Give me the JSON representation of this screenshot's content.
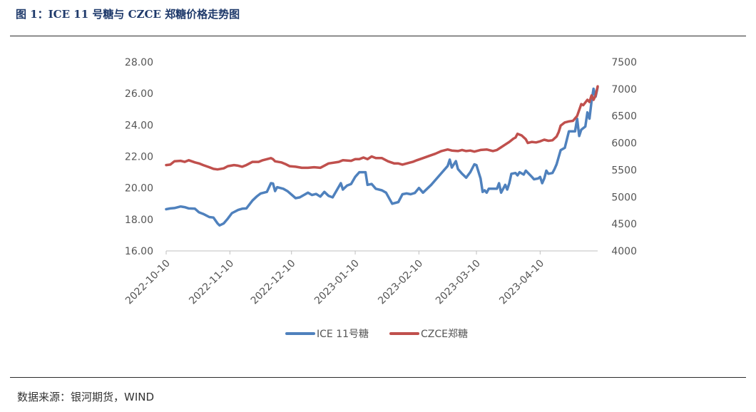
{
  "header": {
    "title": "图 1：ICE 11 号糖与 CZCE 郑糖价格走势图"
  },
  "footer": {
    "source": "数据来源：银河期货，WIND"
  },
  "colors": {
    "ice": "#4f81bd",
    "czce": "#c0504d",
    "title": "#1f3a6b"
  },
  "chart_data": {
    "type": "line",
    "title": "",
    "x_type": "date",
    "x_range": [
      "2022-10-10",
      "2023-04-28"
    ],
    "x_ticks": [
      "2022-10-10",
      "2022-11-10",
      "2022-12-10",
      "2023-01-10",
      "2023-02-10",
      "2023-03-10",
      "2023-04-10"
    ],
    "y_left": {
      "range": [
        16,
        28
      ],
      "ticks": [
        "16.00",
        "18.00",
        "20.00",
        "22.00",
        "24.00",
        "26.00",
        "28.00"
      ]
    },
    "y_right": {
      "range": [
        4000,
        7500
      ],
      "ticks": [
        "4000",
        "4500",
        "5000",
        "5500",
        "6000",
        "6500",
        "7000",
        "7500"
      ]
    },
    "grid": false,
    "legend": "bottom",
    "series": [
      {
        "name": "ICE 11号糖",
        "axis": "left",
        "points": [
          [
            "2022-10-10",
            18.65
          ],
          [
            "2022-10-12",
            18.7
          ],
          [
            "2022-10-14",
            18.72
          ],
          [
            "2022-10-17",
            18.82
          ],
          [
            "2022-10-19",
            18.78
          ],
          [
            "2022-10-21",
            18.7
          ],
          [
            "2022-10-24",
            18.68
          ],
          [
            "2022-10-26",
            18.45
          ],
          [
            "2022-10-28",
            18.35
          ],
          [
            "2022-10-31",
            18.15
          ],
          [
            "2022-11-02",
            18.12
          ],
          [
            "2022-11-04",
            17.75
          ],
          [
            "2022-11-05",
            17.62
          ],
          [
            "2022-11-07",
            17.75
          ],
          [
            "2022-11-09",
            18.05
          ],
          [
            "2022-11-11",
            18.4
          ],
          [
            "2022-11-14",
            18.6
          ],
          [
            "2022-11-16",
            18.68
          ],
          [
            "2022-11-18",
            18.7
          ],
          [
            "2022-11-21",
            19.2
          ],
          [
            "2022-11-23",
            19.45
          ],
          [
            "2022-11-25",
            19.65
          ],
          [
            "2022-11-28",
            19.75
          ],
          [
            "2022-11-30",
            20.3
          ],
          [
            "2022-12-01",
            20.28
          ],
          [
            "2022-12-02",
            19.8
          ],
          [
            "2022-12-03",
            20.05
          ],
          [
            "2022-12-06",
            19.95
          ],
          [
            "2022-12-08",
            19.8
          ],
          [
            "2022-12-12",
            19.35
          ],
          [
            "2022-12-14",
            19.4
          ],
          [
            "2022-12-16",
            19.55
          ],
          [
            "2022-12-18",
            19.7
          ],
          [
            "2022-12-20",
            19.55
          ],
          [
            "2022-12-22",
            19.62
          ],
          [
            "2022-12-24",
            19.45
          ],
          [
            "2022-12-26",
            19.75
          ],
          [
            "2022-12-28",
            19.5
          ],
          [
            "2022-12-30",
            19.4
          ],
          [
            "2023-01-03",
            20.3
          ],
          [
            "2023-01-04",
            19.9
          ],
          [
            "2023-01-06",
            20.15
          ],
          [
            "2023-01-08",
            20.25
          ],
          [
            "2023-01-10",
            20.7
          ],
          [
            "2023-01-12",
            21.0
          ],
          [
            "2023-01-15",
            21.0
          ],
          [
            "2023-01-16",
            20.2
          ],
          [
            "2023-01-18",
            20.25
          ],
          [
            "2023-01-20",
            19.95
          ],
          [
            "2023-01-23",
            19.85
          ],
          [
            "2023-01-25",
            19.7
          ],
          [
            "2023-01-28",
            19.0
          ],
          [
            "2023-01-31",
            19.1
          ],
          [
            "2023-02-02",
            19.6
          ],
          [
            "2023-02-04",
            19.65
          ],
          [
            "2023-02-06",
            19.6
          ],
          [
            "2023-02-08",
            19.68
          ],
          [
            "2023-02-10",
            20.0
          ],
          [
            "2023-02-12",
            19.7
          ],
          [
            "2023-02-16",
            20.2
          ],
          [
            "2023-02-20",
            20.8
          ],
          [
            "2023-02-24",
            21.4
          ],
          [
            "2023-02-25",
            21.8
          ],
          [
            "2023-02-26",
            21.3
          ],
          [
            "2023-02-28",
            21.7
          ],
          [
            "2023-03-01",
            21.2
          ],
          [
            "2023-03-03",
            20.9
          ],
          [
            "2023-03-05",
            20.65
          ],
          [
            "2023-03-07",
            21.0
          ],
          [
            "2023-03-09",
            21.5
          ],
          [
            "2023-03-10",
            21.45
          ],
          [
            "2023-03-12",
            20.6
          ],
          [
            "2023-03-13",
            19.75
          ],
          [
            "2023-03-14",
            19.85
          ],
          [
            "2023-03-15",
            19.7
          ],
          [
            "2023-03-16",
            19.95
          ],
          [
            "2023-03-20",
            19.95
          ],
          [
            "2023-03-21",
            20.3
          ],
          [
            "2023-03-22",
            19.7
          ],
          [
            "2023-03-24",
            20.2
          ],
          [
            "2023-03-25",
            19.9
          ],
          [
            "2023-03-26",
            20.3
          ],
          [
            "2023-03-27",
            20.9
          ],
          [
            "2023-03-29",
            20.95
          ],
          [
            "2023-03-30",
            20.8
          ],
          [
            "2023-03-31",
            21.0
          ],
          [
            "2023-04-02",
            20.85
          ],
          [
            "2023-04-03",
            21.1
          ],
          [
            "2023-04-06",
            20.7
          ],
          [
            "2023-04-07",
            20.55
          ],
          [
            "2023-04-09",
            20.6
          ],
          [
            "2023-04-10",
            20.7
          ],
          [
            "2023-04-11",
            20.3
          ],
          [
            "2023-04-12",
            20.6
          ],
          [
            "2023-04-13",
            21.1
          ],
          [
            "2023-04-14",
            20.9
          ],
          [
            "2023-04-16",
            20.95
          ],
          [
            "2023-04-17",
            21.2
          ],
          [
            "2023-04-18",
            21.5
          ],
          [
            "2023-04-20",
            22.4
          ],
          [
            "2023-04-22",
            22.55
          ],
          [
            "2023-04-24",
            23.6
          ],
          [
            "2023-04-27",
            23.6
          ],
          [
            "2023-04-28",
            24.4
          ],
          [
            "2023-04-29",
            23.3
          ],
          [
            "2023-04-30",
            23.7
          ],
          [
            "2023-05-02",
            23.9
          ],
          [
            "2023-05-03",
            24.8
          ],
          [
            "2023-05-04",
            24.4
          ],
          [
            "2023-05-05",
            25.5
          ],
          [
            "2023-05-06",
            26.3
          ],
          [
            "2023-05-07",
            25.8
          ],
          [
            "2023-05-08",
            26.4
          ]
        ]
      },
      {
        "name": "CZCE郑糖",
        "axis": "right",
        "points": [
          [
            "2022-10-10",
            5590
          ],
          [
            "2022-10-12",
            5600
          ],
          [
            "2022-10-14",
            5660
          ],
          [
            "2022-10-17",
            5670
          ],
          [
            "2022-10-19",
            5650
          ],
          [
            "2022-10-21",
            5680
          ],
          [
            "2022-10-24",
            5640
          ],
          [
            "2022-10-26",
            5620
          ],
          [
            "2022-10-28",
            5590
          ],
          [
            "2022-10-31",
            5550
          ],
          [
            "2022-11-02",
            5520
          ],
          [
            "2022-11-04",
            5510
          ],
          [
            "2022-11-07",
            5530
          ],
          [
            "2022-11-09",
            5570
          ],
          [
            "2022-11-12",
            5590
          ],
          [
            "2022-11-14",
            5580
          ],
          [
            "2022-11-16",
            5560
          ],
          [
            "2022-11-18",
            5590
          ],
          [
            "2022-11-21",
            5650
          ],
          [
            "2022-11-24",
            5650
          ],
          [
            "2022-11-26",
            5680
          ],
          [
            "2022-11-28",
            5700
          ],
          [
            "2022-11-30",
            5720
          ],
          [
            "2022-12-01",
            5700
          ],
          [
            "2022-12-02",
            5660
          ],
          [
            "2022-12-05",
            5640
          ],
          [
            "2022-12-07",
            5610
          ],
          [
            "2022-12-09",
            5570
          ],
          [
            "2022-12-12",
            5560
          ],
          [
            "2022-12-15",
            5540
          ],
          [
            "2022-12-18",
            5540
          ],
          [
            "2022-12-21",
            5550
          ],
          [
            "2022-12-24",
            5540
          ],
          [
            "2022-12-26",
            5580
          ],
          [
            "2022-12-28",
            5620
          ],
          [
            "2023-01-02",
            5650
          ],
          [
            "2023-01-04",
            5680
          ],
          [
            "2023-01-08",
            5670
          ],
          [
            "2023-01-10",
            5700
          ],
          [
            "2023-01-12",
            5700
          ],
          [
            "2023-01-14",
            5730
          ],
          [
            "2023-01-16",
            5700
          ],
          [
            "2023-01-18",
            5750
          ],
          [
            "2023-01-20",
            5720
          ],
          [
            "2023-01-23",
            5720
          ],
          [
            "2023-01-26",
            5660
          ],
          [
            "2023-01-29",
            5620
          ],
          [
            "2023-01-31",
            5620
          ],
          [
            "2023-02-02",
            5600
          ],
          [
            "2023-02-05",
            5630
          ],
          [
            "2023-02-07",
            5650
          ],
          [
            "2023-02-09",
            5680
          ],
          [
            "2023-02-12",
            5720
          ],
          [
            "2023-02-15",
            5760
          ],
          [
            "2023-02-18",
            5800
          ],
          [
            "2023-02-21",
            5850
          ],
          [
            "2023-02-24",
            5880
          ],
          [
            "2023-02-26",
            5860
          ],
          [
            "2023-03-01",
            5850
          ],
          [
            "2023-03-03",
            5870
          ],
          [
            "2023-03-05",
            5850
          ],
          [
            "2023-03-07",
            5860
          ],
          [
            "2023-03-09",
            5840
          ],
          [
            "2023-03-12",
            5870
          ],
          [
            "2023-03-15",
            5880
          ],
          [
            "2023-03-18",
            5850
          ],
          [
            "2023-03-20",
            5870
          ],
          [
            "2023-03-22",
            5920
          ],
          [
            "2023-03-24",
            5970
          ],
          [
            "2023-03-26",
            6020
          ],
          [
            "2023-03-28",
            6080
          ],
          [
            "2023-03-29",
            6100
          ],
          [
            "2023-03-30",
            6170
          ],
          [
            "2023-04-01",
            6140
          ],
          [
            "2023-04-03",
            6070
          ],
          [
            "2023-04-04",
            6000
          ],
          [
            "2023-04-06",
            6020
          ],
          [
            "2023-04-08",
            6010
          ],
          [
            "2023-04-10",
            6030
          ],
          [
            "2023-04-12",
            6060
          ],
          [
            "2023-04-14",
            6040
          ],
          [
            "2023-04-16",
            6050
          ],
          [
            "2023-04-18",
            6120
          ],
          [
            "2023-04-19",
            6200
          ],
          [
            "2023-04-20",
            6320
          ],
          [
            "2023-04-22",
            6380
          ],
          [
            "2023-04-24",
            6400
          ],
          [
            "2023-04-26",
            6410
          ],
          [
            "2023-04-28",
            6500
          ],
          [
            "2023-04-30",
            6720
          ],
          [
            "2023-05-01",
            6700
          ],
          [
            "2023-05-02",
            6750
          ],
          [
            "2023-05-03",
            6800
          ],
          [
            "2023-05-04",
            6760
          ],
          [
            "2023-05-05",
            6880
          ],
          [
            "2023-05-06",
            6800
          ],
          [
            "2023-05-07",
            6880
          ],
          [
            "2023-05-08",
            7050
          ]
        ]
      }
    ]
  }
}
